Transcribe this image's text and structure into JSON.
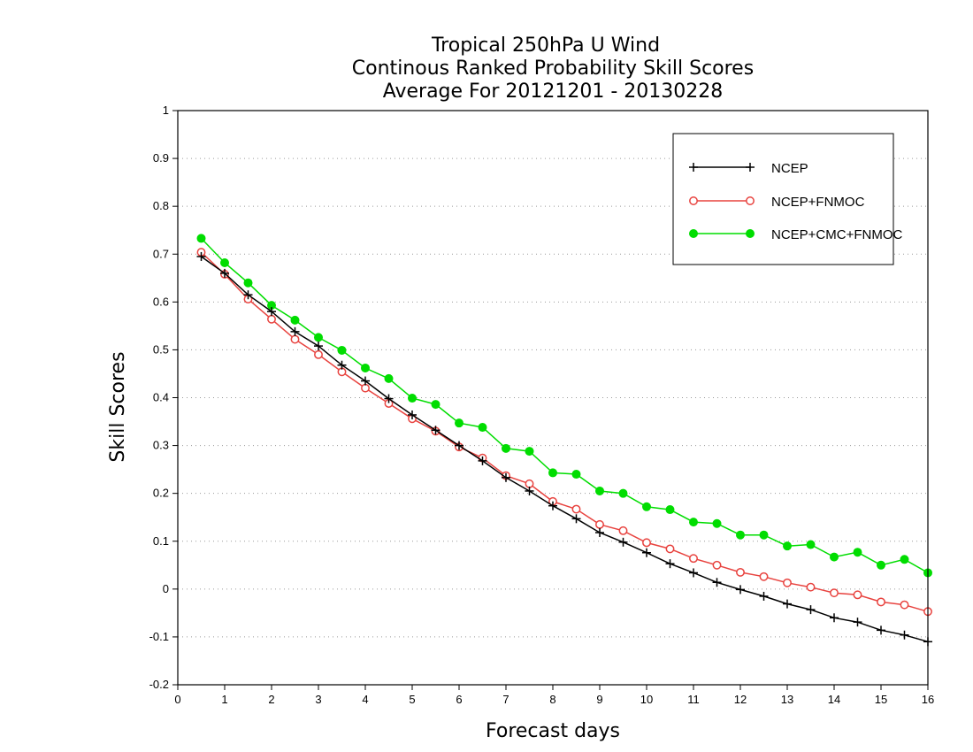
{
  "chart_data": {
    "type": "line",
    "title": [
      "Tropical 250hPa U Wind",
      "Continous Ranked Probability Skill Scores",
      "Average For 20121201 - 20130228"
    ],
    "xlabel": "Forecast days",
    "ylabel": "Skill Scores",
    "xlim": [
      0,
      16
    ],
    "ylim": [
      -0.2,
      1
    ],
    "xticks": [
      0,
      1,
      2,
      3,
      4,
      5,
      6,
      7,
      8,
      9,
      10,
      11,
      12,
      13,
      14,
      15,
      16
    ],
    "yticks": [
      -0.2,
      -0.1,
      0,
      0.1,
      0.2,
      0.3,
      0.4,
      0.5,
      0.6,
      0.7,
      0.8,
      0.9,
      1
    ],
    "ytick_labels": [
      "-0.2",
      "-0.1",
      "0",
      "0.1",
      "0.2",
      "0.3",
      "0.4",
      "0.5",
      "0.6",
      "0.7",
      "0.8",
      "0.9",
      "1"
    ],
    "grid": "horizontal dotted",
    "legend_position": "top-right",
    "x": [
      0.5,
      1,
      1.5,
      2,
      2.5,
      3,
      3.5,
      4,
      4.5,
      5,
      5.5,
      6,
      6.5,
      7,
      7.5,
      8,
      8.5,
      9,
      9.5,
      10,
      10.5,
      11,
      11.5,
      12,
      12.5,
      13,
      13.5,
      14,
      14.5,
      15,
      15.5,
      16
    ],
    "series": [
      {
        "name": "NCEP",
        "color": "#000000",
        "marker": "plus",
        "values": [
          0.695,
          0.66,
          0.615,
          0.58,
          0.538,
          0.508,
          0.468,
          0.435,
          0.398,
          0.364,
          0.332,
          0.3,
          0.268,
          0.233,
          0.205,
          0.174,
          0.147,
          0.118,
          0.098,
          0.076,
          0.053,
          0.034,
          0.014,
          -0.001,
          -0.015,
          -0.031,
          -0.043,
          -0.06,
          -0.069,
          -0.086,
          -0.096,
          -0.11
        ]
      },
      {
        "name": "NCEP+FNMOC",
        "color": "#e8433f",
        "marker": "open-circle",
        "values": [
          0.704,
          0.658,
          0.606,
          0.564,
          0.522,
          0.49,
          0.454,
          0.42,
          0.388,
          0.356,
          0.33,
          0.297,
          0.274,
          0.237,
          0.22,
          0.183,
          0.167,
          0.135,
          0.122,
          0.097,
          0.084,
          0.064,
          0.05,
          0.035,
          0.026,
          0.013,
          0.004,
          -0.008,
          -0.012,
          -0.027,
          -0.033,
          -0.047
        ]
      },
      {
        "name": "NCEP+CMC+FNMOC",
        "color": "#00dd00",
        "marker": "filled-circle",
        "values": [
          0.733,
          0.682,
          0.64,
          0.593,
          0.562,
          0.526,
          0.499,
          0.462,
          0.44,
          0.399,
          0.386,
          0.347,
          0.338,
          0.294,
          0.288,
          0.243,
          0.24,
          0.205,
          0.2,
          0.172,
          0.166,
          0.14,
          0.137,
          0.113,
          0.113,
          0.09,
          0.093,
          0.067,
          0.077,
          0.05,
          0.062,
          0.034
        ]
      }
    ]
  }
}
